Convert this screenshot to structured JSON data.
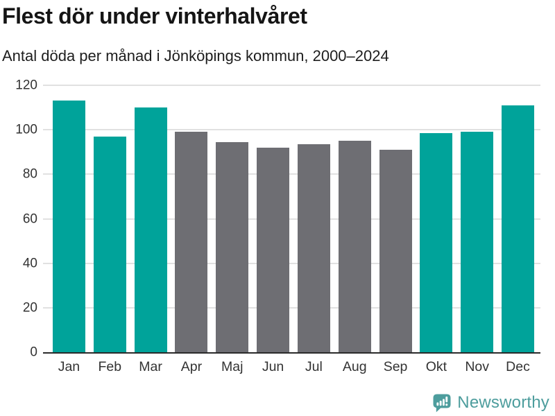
{
  "header": {
    "title": "Flest dör under vinterhalvåret",
    "subtitle": "Antal döda per månad i Jönköpings kommun, 2000–2024"
  },
  "chart_data": {
    "type": "bar",
    "title": "Flest dör under vinterhalvåret",
    "subtitle": "Antal döda per månad i Jönköpings kommun, 2000–2024",
    "categories": [
      "Jan",
      "Feb",
      "Mar",
      "Apr",
      "Maj",
      "Jun",
      "Jul",
      "Aug",
      "Sep",
      "Okt",
      "Nov",
      "Dec"
    ],
    "values": [
      113,
      97,
      110,
      99,
      94.5,
      92,
      93.5,
      95,
      91,
      98.5,
      99,
      111
    ],
    "bar_colors": [
      "teal",
      "teal",
      "teal",
      "gray",
      "gray",
      "gray",
      "gray",
      "gray",
      "gray",
      "teal",
      "teal",
      "teal"
    ],
    "palette": {
      "teal": "#00a39a",
      "gray": "#6e6e73"
    },
    "xlabel": "",
    "ylabel": "",
    "ylim": [
      0,
      120
    ],
    "yticks": [
      0,
      20,
      40,
      60,
      80,
      100,
      120
    ],
    "grid": true,
    "legend": "none"
  },
  "footer": {
    "brand": "Newsworthy",
    "logo_icon": "newsworthy-speech-bubble-bar-chart-icon"
  },
  "colors": {
    "background": "#ffffff",
    "bar_teal": "#00a39a",
    "bar_gray": "#6e6e73",
    "gridline": "#e1e1e1",
    "axis": "#2a2a2a",
    "title_text": "#151515",
    "tick_text": "#333333",
    "brand_teal": "#4d9d9d"
  }
}
